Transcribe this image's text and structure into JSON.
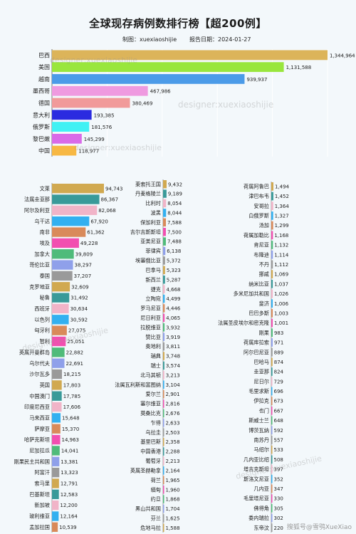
{
  "header": {
    "title": "全球现存病例数排行榜【超200例】",
    "author": "制图：xuexiaoshijie",
    "date": "报告日期：2024-01-27"
  },
  "watermarks": [
    "designer:xuexiaoshijie",
    "designer:xuexiaoshijie",
    "designer:xuexiaoshijie",
    "designer:xuexiaoshijie",
    "designer:xuexiaoshijie"
  ],
  "footer_watermark": "搜狐号@雪鸮XueXiao",
  "colors": {
    "top": [
      "#dcb45a",
      "#99e63d",
      "#4b9be8",
      "#ef9ae0",
      "#f19a9a",
      "#2b2be0",
      "#41f1f4",
      "#d96ae8",
      "#f7b843"
    ],
    "lower": [
      "#d1a950",
      "#399a99",
      "#f1b4c8",
      "#33b0f0",
      "#d98a5a",
      "#f24fb0",
      "#4fbb7a",
      "#8fa0ea",
      "#9a9a9a"
    ],
    "grid": "#ffffff"
  },
  "chart_data": [
    {
      "type": "bar",
      "orientation": "horizontal",
      "title": "全球现存病例数排行榜【超200例】",
      "categories": [
        "巴西",
        "美国",
        "越南",
        "墨西哥",
        "德国",
        "意大利",
        "俄罗斯",
        "黎巴嫩",
        "中国"
      ],
      "values": [
        1344964,
        1131588,
        939937,
        467986,
        380469,
        193385,
        181576,
        145299,
        118977
      ],
      "labels": [
        "1,344,964",
        "1,131,588",
        "939,937",
        "467,986",
        "380,469",
        "193,385",
        "181,576",
        "145,299",
        "118,977"
      ]
    },
    {
      "type": "bar",
      "orientation": "horizontal",
      "categories": [
        "文莱",
        "法属圭亚那",
        "阿尔及利亚",
        "乌干达",
        "南非",
        "埃及",
        "加拿大",
        "哥伦比亚",
        "泰国",
        "克罗地亚",
        "秘鲁",
        "西班牙",
        "以色列",
        "匈牙利",
        "智利",
        "英属开曼群岛",
        "乌尔代夫",
        "沙尔瓦多",
        "英国",
        "中国澳门",
        "印度尼西亚",
        "马来西亚",
        "萨摩亚",
        "哈萨克斯坦",
        "尼加拉瓜",
        "刚果民主共和国",
        "阿富汗",
        "索马里",
        "巴基斯坦",
        "新加坡",
        "玻利维亚",
        "孟加拉国"
      ],
      "values": [
        94743,
        86367,
        82068,
        67920,
        61362,
        49228,
        39809,
        38297,
        37207,
        32609,
        31492,
        30634,
        30592,
        27075,
        25051,
        22882,
        22691,
        18215,
        17803,
        17785,
        17606,
        15648,
        15370,
        14963,
        14041,
        13381,
        13323,
        12791,
        12583,
        12200,
        12164,
        10539
      ],
      "labels": [
        "94,743",
        "86,367",
        "82,068",
        "67,920",
        "61,362",
        "49,228",
        "39,809",
        "38,297",
        "37,207",
        "32,609",
        "31,492",
        "30,634",
        "30,592",
        "27,075",
        "25,051",
        "22,882",
        "22,691",
        "18,215",
        "17,803",
        "17,785",
        "17,606",
        "15,648",
        "15,370",
        "14,963",
        "14,041",
        "13,381",
        "13,323",
        "12,791",
        "12,583",
        "12,200",
        "12,164",
        "10,539"
      ]
    },
    {
      "type": "bar",
      "orientation": "horizontal",
      "categories": [
        "莱索托王国",
        "丹麦格陵兰",
        "比利时",
        "波黑",
        "保加利亚",
        "吉尔吉斯斯坦",
        "亚美尼亚",
        "菲律宾",
        "埃塞俄比亚",
        "巴拿马",
        "新西兰",
        "捷克",
        "立陶宛",
        "罗马尼亚",
        "尼日利亚",
        "拉脱维亚",
        "赞比亚",
        "奥地利",
        "瑞典",
        "瑞士",
        "北马其顿",
        "法属瓦利斯和富图纳",
        "爱尔兰",
        "塞尔维亚",
        "莫桑比克",
        "乍得",
        "乌拉圭",
        "基里巴斯",
        "中国香港",
        "葡萄牙",
        "英属圣赫勒拿",
        "荷兰",
        "缅甸",
        "约旦",
        "黑山共和国",
        "芬兰",
        "危地马拉"
      ],
      "values": [
        9432,
        9189,
        8054,
        8044,
        7588,
        7500,
        7488,
        6138,
        5372,
        5323,
        5287,
        4668,
        4499,
        4446,
        4065,
        3932,
        3919,
        3811,
        3748,
        3574,
        3213,
        3104,
        2901,
        2816,
        2676,
        2633,
        2503,
        2358,
        2288,
        2213,
        2164,
        1965,
        1960,
        1868,
        1704,
        1625,
        1588
      ],
      "labels": [
        "9,432",
        "9,189",
        "8,054",
        "8,044",
        "7,588",
        "7,500",
        "7,488",
        "6,138",
        "5,372",
        "5,323",
        "5,287",
        "4,668",
        "4,499",
        "4,446",
        "4,065",
        "3,932",
        "3,919",
        "3,811",
        "3,748",
        "3,574",
        "3,213",
        "3,104",
        "2,901",
        "2,816",
        "2,676",
        "2,633",
        "2,503",
        "2,358",
        "2,288",
        "2,213",
        "2,164",
        "1,965",
        "1,960",
        "1,868",
        "1,704",
        "1,625",
        "1,588"
      ]
    },
    {
      "type": "bar",
      "orientation": "horizontal",
      "categories": [
        "荷属阿鲁巴",
        "津巴布韦",
        "安哥拉",
        "白俄罗斯",
        "汤加",
        "荷属加勒比",
        "肯尼亚",
        "布隆迪",
        "不丹",
        "挪威",
        "纳米比亚",
        "多米尼加共和国",
        "斐济",
        "巴巴多斯",
        "法属圣皮埃尔和密克隆",
        "刚果",
        "荷属库拉索",
        "阿尔巴尼亚",
        "巴哈马",
        "圭亚那",
        "尼日尔",
        "毛里求斯",
        "伊拉克",
        "也门",
        "斯威士兰",
        "博茨瓦纳",
        "南苏丹",
        "马绍尔",
        "几内亚比绍",
        "塔吉克斯坦",
        "斯洛文尼亚",
        "几内亚",
        "毛里塔尼亚",
        "佛得角",
        "委内瑞拉",
        "东帝汶"
      ],
      "values": [
        1494,
        1452,
        1364,
        1327,
        1299,
        1168,
        1132,
        1114,
        1112,
        1069,
        1037,
        1026,
        1006,
        1003,
        1001,
        983,
        971,
        889,
        874,
        824,
        729,
        696,
        673,
        667,
        648,
        592,
        557,
        533,
        508,
        397,
        352,
        347,
        330,
        305,
        302,
        220
      ],
      "labels": [
        "1,494",
        "1,452",
        "1,364",
        "1,327",
        "1,299",
        "1,168",
        "1,132",
        "1,114",
        "1,112",
        "1,069",
        "1,037",
        "1,026",
        "1,006",
        "1,003",
        "1,001",
        "983",
        "971",
        "889",
        "874",
        "824",
        "729",
        "696",
        "673",
        "667",
        "648",
        "592",
        "557",
        "533",
        "508",
        "397",
        "352",
        "347",
        "330",
        "305",
        "302",
        "220"
      ]
    }
  ]
}
